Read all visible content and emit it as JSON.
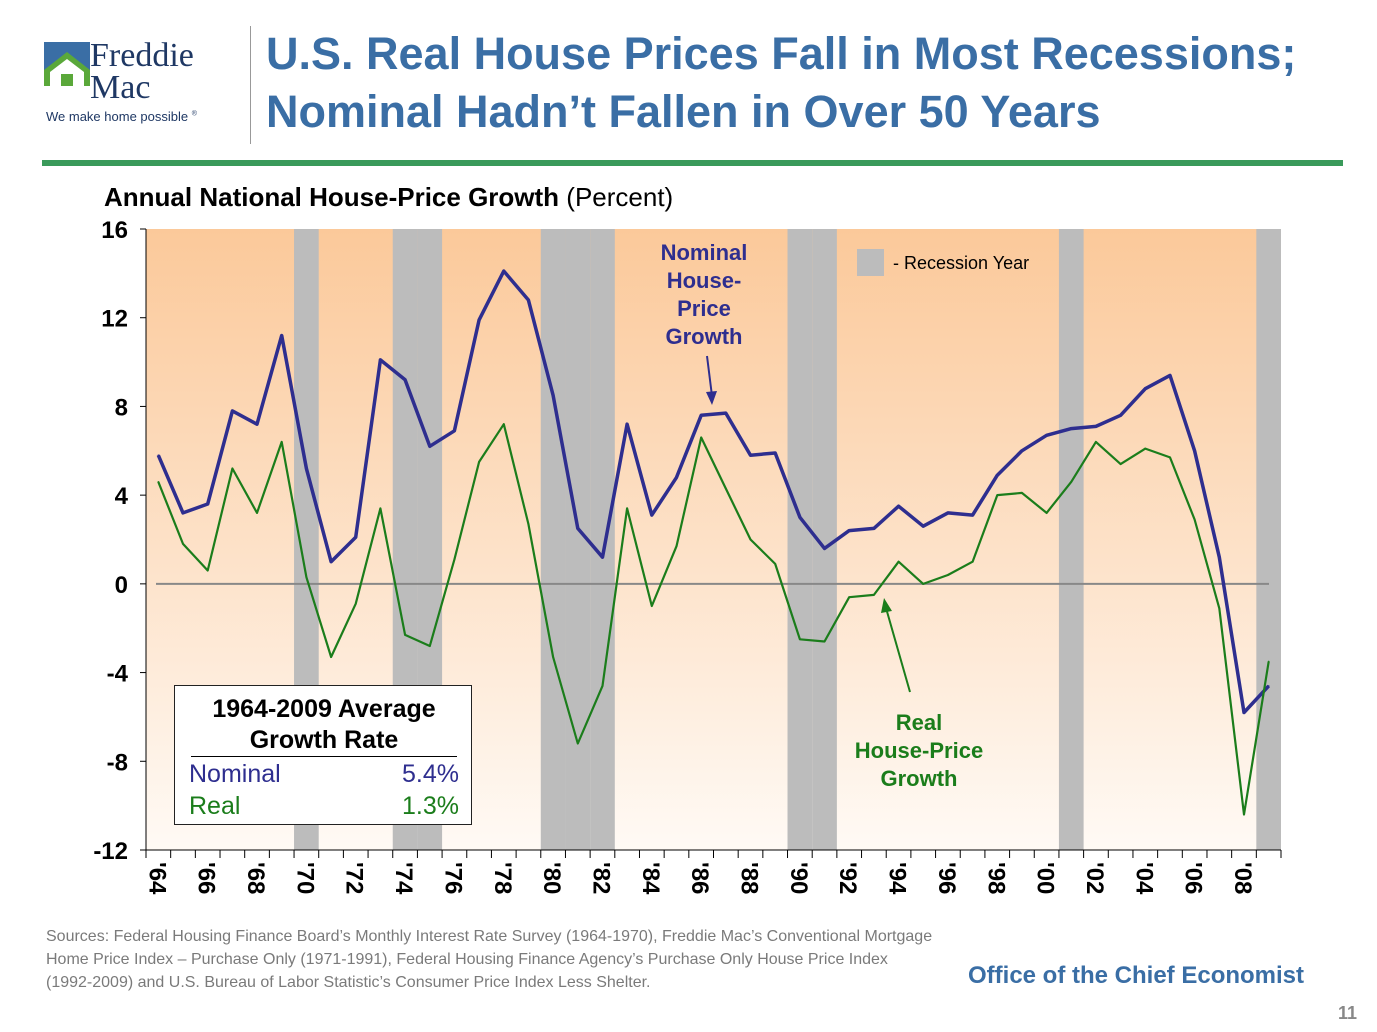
{
  "header": {
    "logo_line1": "Freddie",
    "logo_line2": "Mac",
    "logo_tagline": "We make home possible",
    "logo_tagline_mark": "®",
    "title_line1": "U.S. Real House Prices Fall in Most Recessions;",
    "title_line2": "Nominal Hadn’t Fallen in Over 50 Years"
  },
  "colors": {
    "nominal": "#2e2e8f",
    "real": "#1b7d1b",
    "recession": "#bcbcbc",
    "title_blue": "#3a6ea5",
    "rule_green": "#3a9a5a"
  },
  "chart_data": {
    "type": "line",
    "title_bold": "Annual National House-Price Growth",
    "title_unit": "(Percent)",
    "ylim": [
      -12,
      16
    ],
    "yticks": [
      16,
      12,
      8,
      4,
      0,
      -4,
      -8,
      -12
    ],
    "x": [
      1964,
      1965,
      1966,
      1967,
      1968,
      1969,
      1970,
      1971,
      1972,
      1973,
      1974,
      1975,
      1976,
      1977,
      1978,
      1979,
      1980,
      1981,
      1982,
      1983,
      1984,
      1985,
      1986,
      1987,
      1988,
      1989,
      1990,
      1991,
      1992,
      1993,
      1994,
      1995,
      1996,
      1997,
      1998,
      1999,
      2000,
      2001,
      2002,
      2003,
      2004,
      2005,
      2006,
      2007,
      2008,
      2009
    ],
    "xtick_labels": [
      "'64",
      "'66",
      "'68",
      "'70",
      "'72",
      "'74",
      "'76",
      "'78",
      "'80",
      "'82",
      "'84",
      "'86",
      "'88",
      "'90",
      "'92",
      "'94",
      "'96",
      "'98",
      "'00",
      "'02",
      "'04",
      "'06",
      "'08"
    ],
    "xtick_years": [
      1964,
      1966,
      1968,
      1970,
      1972,
      1974,
      1976,
      1978,
      1980,
      1982,
      1984,
      1986,
      1988,
      1990,
      1992,
      1994,
      1996,
      1998,
      2000,
      2002,
      2004,
      2006,
      2008
    ],
    "recession_years": [
      1970,
      1974,
      1975,
      1980,
      1981,
      1982,
      1990,
      1991,
      2001,
      2009
    ],
    "series": [
      {
        "key": "nominal",
        "values": [
          5.8,
          3.2,
          3.6,
          7.8,
          7.2,
          11.2,
          5.2,
          1.0,
          2.1,
          10.1,
          9.2,
          6.2,
          6.9,
          11.9,
          14.1,
          12.8,
          8.5,
          2.5,
          1.2,
          7.2,
          3.1,
          4.8,
          7.6,
          7.7,
          5.8,
          5.9,
          3.0,
          1.6,
          2.4,
          2.5,
          3.5,
          2.6,
          3.2,
          3.1,
          4.9,
          6.0,
          6.7,
          7.0,
          7.1,
          7.6,
          8.8,
          9.4,
          6.0,
          1.2,
          -5.8,
          -4.6
        ]
      },
      {
        "key": "real",
        "values": [
          4.6,
          1.8,
          0.6,
          5.2,
          3.2,
          6.4,
          0.3,
          -3.3,
          -0.9,
          3.4,
          -2.3,
          -2.8,
          1.1,
          5.5,
          7.2,
          2.7,
          -3.3,
          -7.2,
          -4.6,
          3.4,
          -1.0,
          1.7,
          6.6,
          4.3,
          2.0,
          0.9,
          -2.5,
          -2.6,
          -0.6,
          -0.5,
          1.0,
          0.0,
          0.4,
          1.0,
          4.0,
          4.1,
          3.2,
          4.6,
          6.4,
          5.4,
          6.1,
          5.7,
          2.9,
          -1.1,
          -10.4,
          -3.5
        ]
      }
    ],
    "legend": {
      "recession_label": "- Recession Year"
    },
    "annotations": {
      "nominal_label": [
        "Nominal",
        "House-",
        "Price",
        "Growth"
      ],
      "real_label": [
        "Real",
        "House-Price",
        "Growth"
      ]
    },
    "average_box": {
      "title_line1": "1964-2009 Average",
      "title_line2": "Growth Rate",
      "rows": [
        {
          "label": "Nominal",
          "value": "5.4%"
        },
        {
          "label": "Real",
          "value": "1.3%"
        }
      ]
    }
  },
  "footer": {
    "sources": "Sources:  Federal Housing Finance Board’s Monthly Interest Rate Survey (1964-1970), Freddie Mac’s Conventional Mortgage Home Price Index – Purchase Only (1971-1991), Federal Housing Finance Agency’s Purchase Only House Price Index (1992-2009) and U.S. Bureau of Labor Statistic’s Consumer Price Index Less Shelter.",
    "office": "Office of the Chief Economist",
    "page_number": "11"
  }
}
